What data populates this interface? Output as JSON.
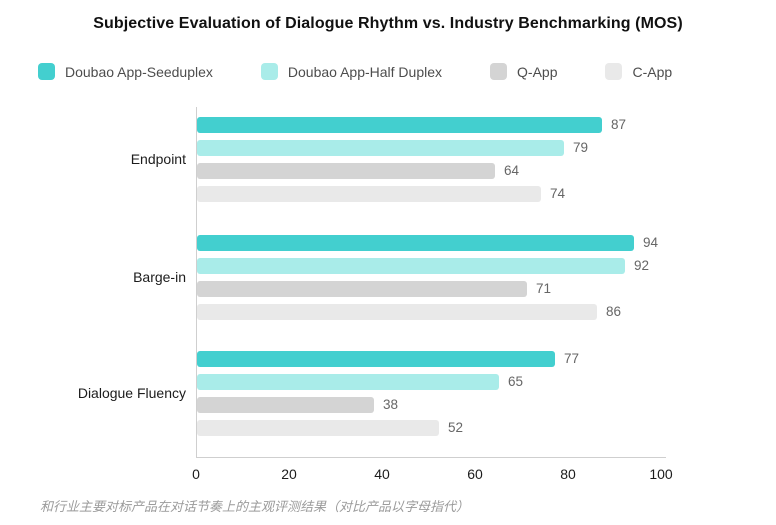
{
  "page": {
    "title": "Subjective Evaluation of Dialogue Rhythm vs. Industry Benchmarking (MOS)",
    "caption": "和行业主要对标产品在对话节奏上的主观评测结果（对比产品以字母指代）"
  },
  "colors": {
    "series_seeduplex": "#43cfcf",
    "series_half_duplex": "#a9ece9",
    "series_q_app": "#d4d4d4",
    "series_c_app": "#e9e9e9",
    "axis_line": "#cfcfcf",
    "value_label_text": "#666666",
    "tick_label_text": "#1c1c1c",
    "legend_text": "#4d4d4d",
    "caption_text": "#9b9b9b"
  },
  "chart_data": {
    "type": "bar",
    "orientation": "horizontal",
    "title": "Subjective Evaluation of Dialogue Rhythm vs. Industry Benchmarking (MOS)",
    "categories": [
      "Endpoint",
      "Barge-in",
      "Dialogue Fluency"
    ],
    "series": [
      {
        "name": "Doubao App-Seeduplex",
        "color": "#43cfcf",
        "values": [
          87,
          94,
          77
        ]
      },
      {
        "name": "Doubao App-Half Duplex",
        "color": "#a9ece9",
        "values": [
          79,
          92,
          65
        ]
      },
      {
        "name": "Q-App",
        "color": "#d4d4d4",
        "values": [
          64,
          71,
          38
        ]
      },
      {
        "name": "C-App",
        "color": "#e9e9e9",
        "values": [
          74,
          86,
          52
        ]
      }
    ],
    "xlim": [
      0,
      100
    ],
    "xticks": [
      0,
      20,
      40,
      60,
      80,
      100
    ],
    "value_labels": true,
    "legend_position": "top",
    "grid": false,
    "caption": "和行业主要对标产品在对话节奏上的主观评测结果（对比产品以字母指代）"
  }
}
